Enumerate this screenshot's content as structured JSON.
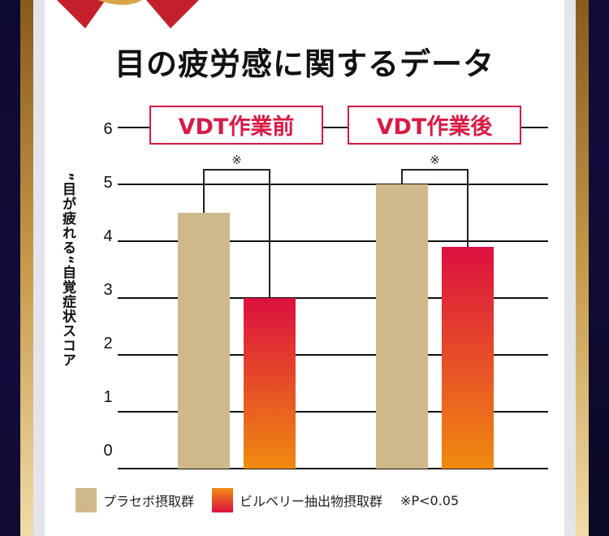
{
  "title": "目の疲労感に関するデータ",
  "chart_data": {
    "type": "bar",
    "title": "目の疲労感に関するデータ",
    "ylabel": "”目が疲れる“自覚症状スコア",
    "ylim": [
      0,
      6
    ],
    "yticks": [
      "0",
      "1",
      "2",
      "3",
      "4",
      "5",
      "6"
    ],
    "grid": true,
    "categories": [
      "VDT作業前",
      "VDT作業後"
    ],
    "series": [
      {
        "name": "プラセボ摂取群",
        "values": [
          4.5,
          5.0
        ],
        "color": "#cfb98a"
      },
      {
        "name": "ビルベリー抽出物摂取群",
        "values": [
          3.0,
          3.9
        ],
        "color_top": "#dc1040",
        "color_bottom": "#f08a10"
      }
    ],
    "significance_mark": "※",
    "legend_placement": "bottom",
    "footnote": "※P<0.05",
    "category_label_color": "#d81a45"
  }
}
